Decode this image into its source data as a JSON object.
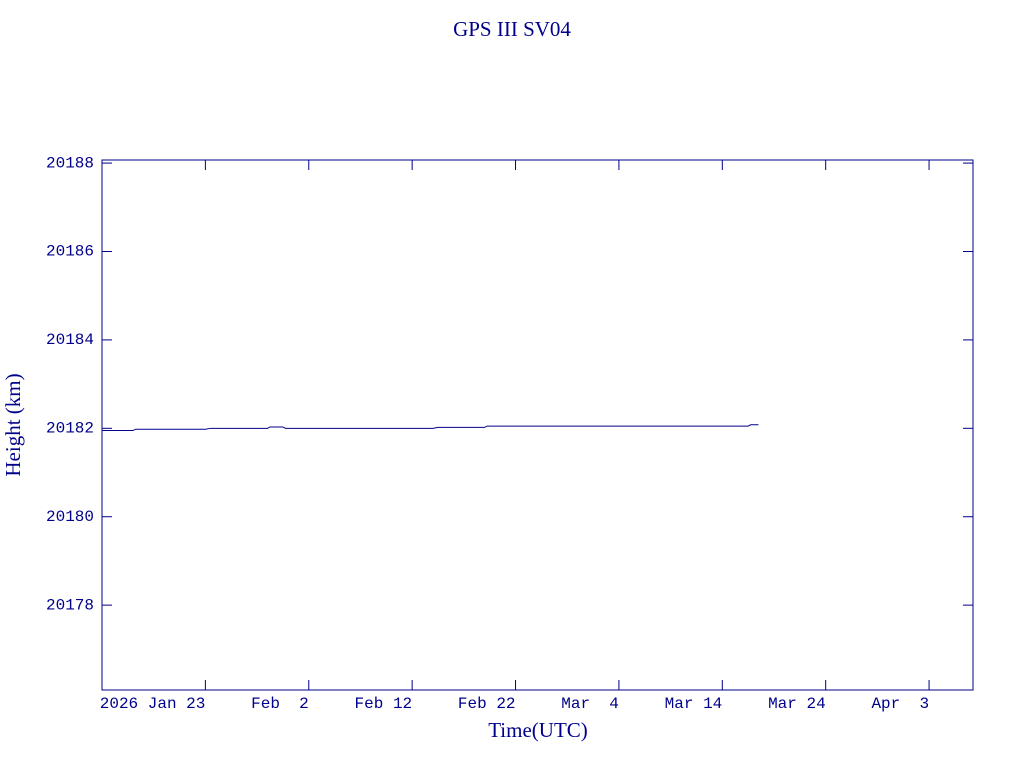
{
  "chart_data": {
    "type": "line",
    "title": "GPS III SV04",
    "xlabel": "Time(UTC)",
    "ylabel": "Height (km)",
    "color": "#00008b",
    "xlim": [
      "2026-01-13T00:00",
      "2026-04-07T06:00"
    ],
    "ylim": [
      20176.08,
      20188.07
    ],
    "xticks": [
      {
        "value": "2026-01-23T00:00",
        "label": "2026 Jan 23"
      },
      {
        "value": "2026-02-02T00:00",
        "label": "Feb  2"
      },
      {
        "value": "2026-02-12T00:00",
        "label": "Feb 12"
      },
      {
        "value": "2026-02-22T00:00",
        "label": "Feb 22"
      },
      {
        "value": "2026-03-04T00:00",
        "label": "Mar  4"
      },
      {
        "value": "2026-03-14T00:00",
        "label": "Mar 14"
      },
      {
        "value": "2026-03-24T00:00",
        "label": "Mar 24"
      },
      {
        "value": "2026-04-03T00:00",
        "label": "Apr  3"
      }
    ],
    "yticks": [
      20178,
      20180,
      20182,
      20184,
      20186,
      20188
    ],
    "series": [
      {
        "name": "GPS III SV04",
        "x": [
          "2026-01-13T00:00",
          "2026-01-16T00:00",
          "2026-01-16T06:00",
          "2026-01-23T00:00",
          "2026-01-23T12:00",
          "2026-01-29T00:00",
          "2026-01-29T06:00",
          "2026-01-30T12:00",
          "2026-01-30T18:00",
          "2026-02-14T00:00",
          "2026-02-14T12:00",
          "2026-02-19T00:00",
          "2026-02-19T06:00",
          "2026-03-16T12:00",
          "2026-03-16T18:00",
          "2026-03-17T12:00"
        ],
        "values": [
          20181.95,
          20181.95,
          20181.98,
          20181.98,
          20182.0,
          20182.0,
          20182.03,
          20182.03,
          20182.0,
          20182.0,
          20182.02,
          20182.02,
          20182.05,
          20182.05,
          20182.08,
          20182.08
        ]
      }
    ]
  }
}
